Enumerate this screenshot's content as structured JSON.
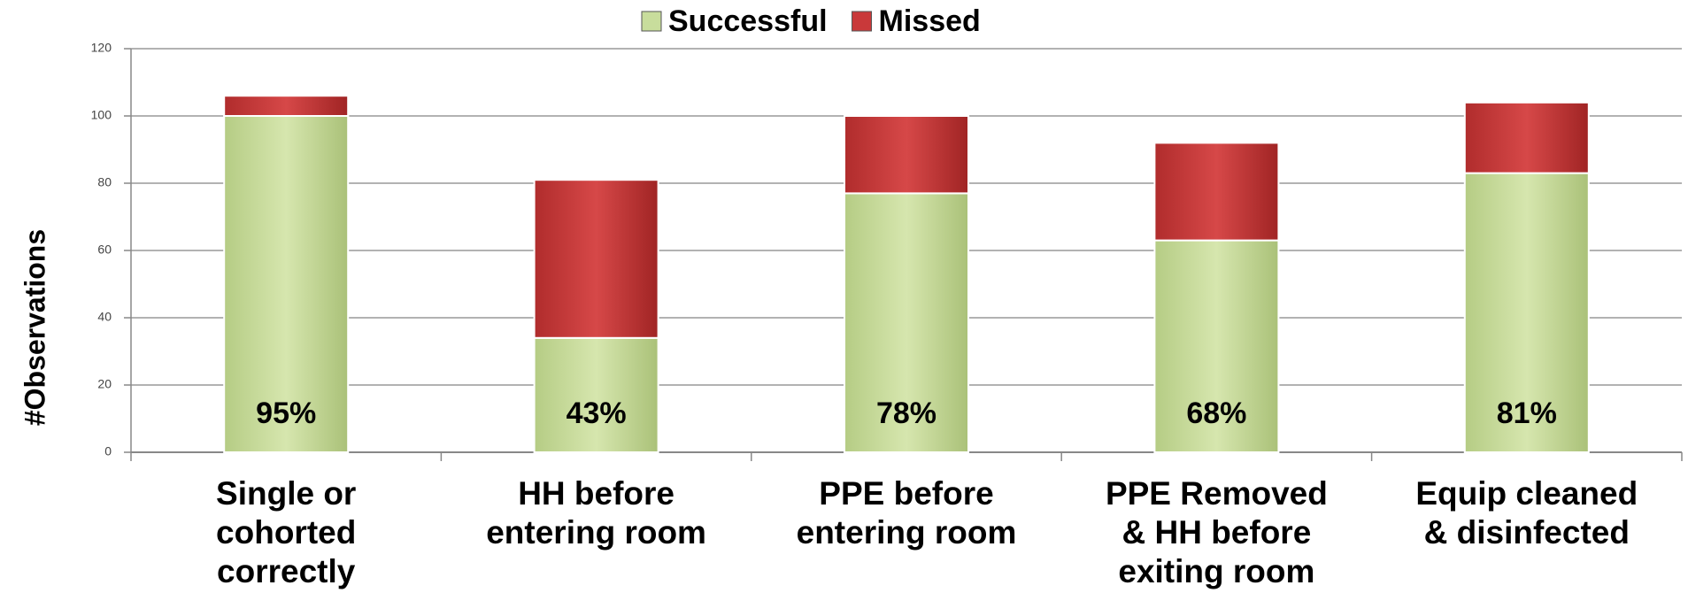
{
  "chart_data": {
    "type": "stacked_bar",
    "y_label": "#Observations",
    "categories": [
      [
        "Single or",
        "cohorted",
        "correctly"
      ],
      [
        "HH before",
        "entering room"
      ],
      [
        "PPE before",
        "entering room"
      ],
      [
        "PPE Removed",
        "& HH before",
        "exiting room"
      ],
      [
        "Equip cleaned",
        "& disinfected"
      ]
    ],
    "series": [
      {
        "name": "Successful",
        "color": "#c8dd9c",
        "values": [
          100,
          34,
          77,
          63,
          83
        ]
      },
      {
        "name": "Missed",
        "color": "#c9393a",
        "values": [
          6,
          47,
          23,
          29,
          21
        ]
      }
    ],
    "success_rate_labels": [
      "95%",
      "43%",
      "78%",
      "68%",
      "81%"
    ],
    "ylim": [
      0,
      120
    ],
    "yticks": [
      0,
      20,
      40,
      60,
      80,
      100,
      120
    ],
    "grid": true,
    "legend": "top"
  }
}
